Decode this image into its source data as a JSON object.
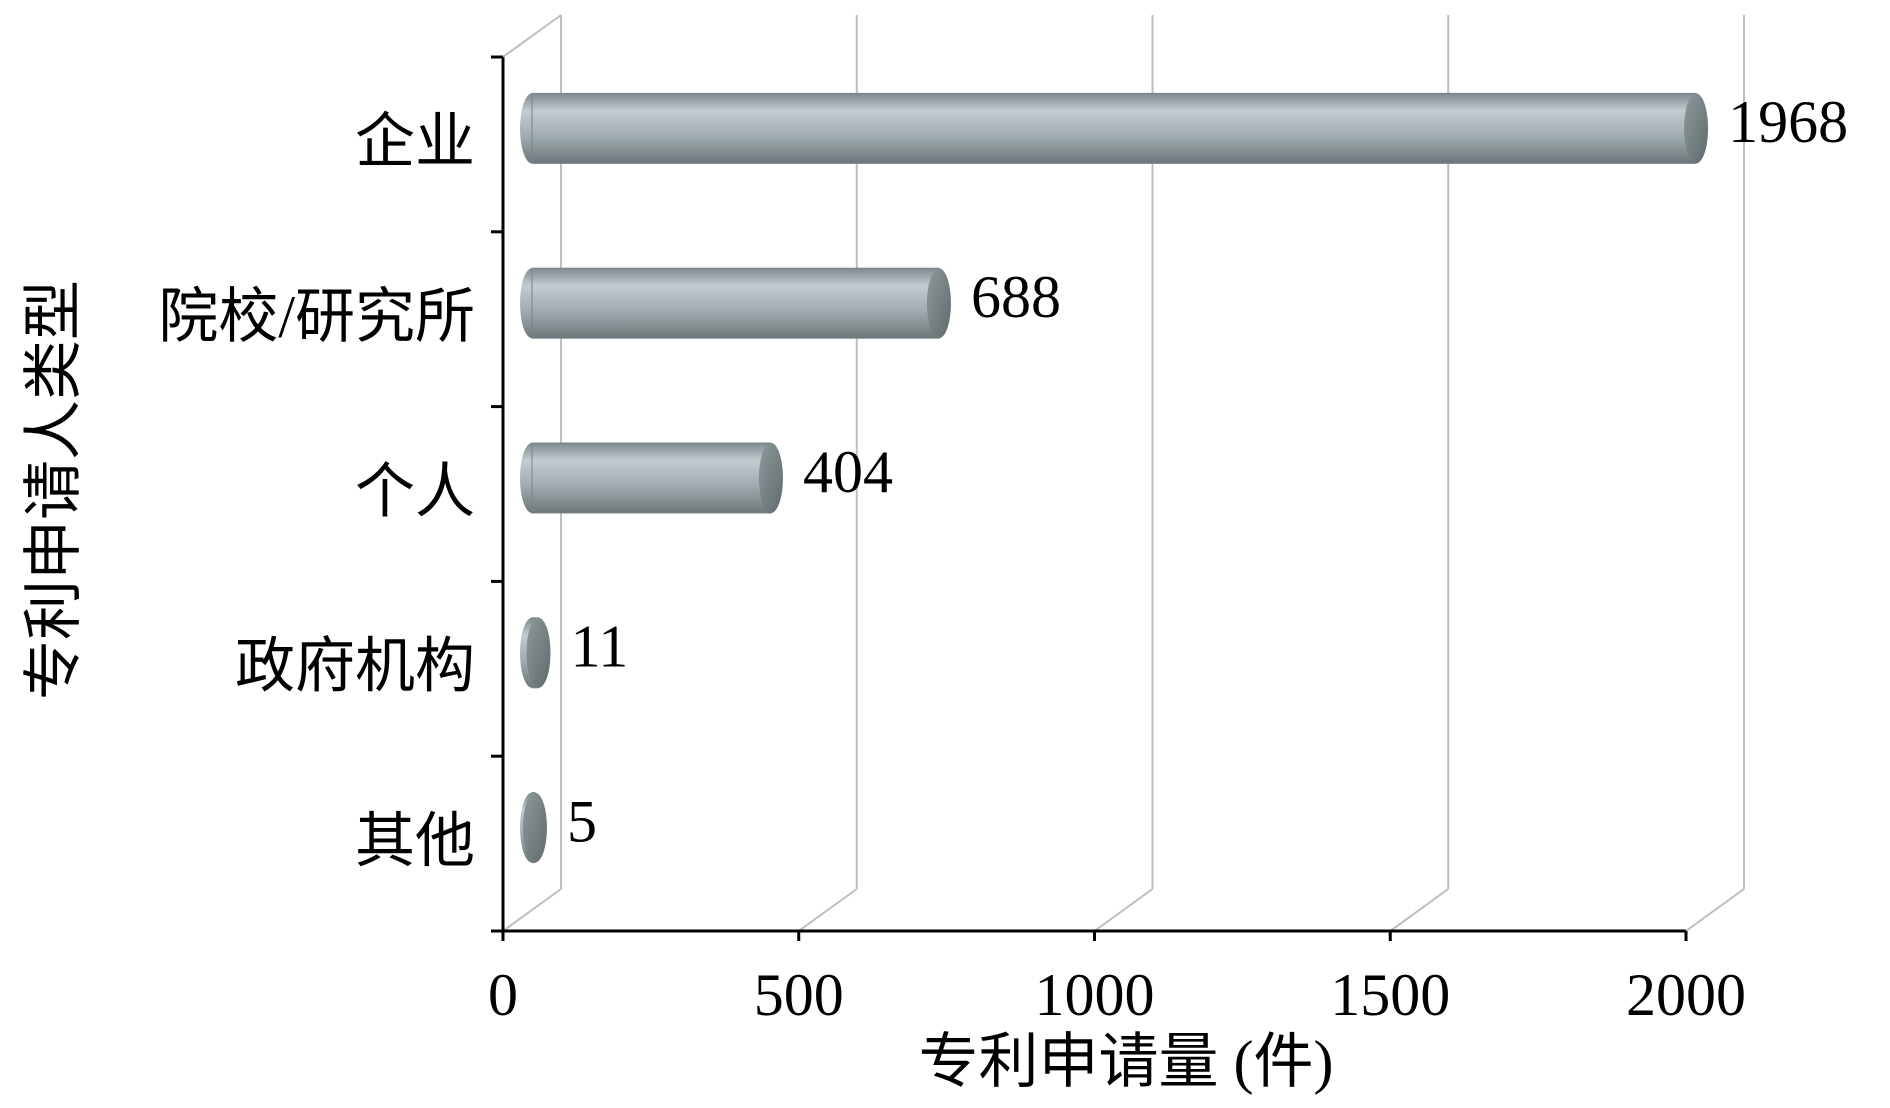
{
  "chart_data": {
    "type": "bar",
    "orientation": "horizontal",
    "xlabel": "专利申请量 (件)",
    "ylabel": "专利申请人类型",
    "categories": [
      "企业",
      "院校/研究所",
      "个人",
      "政府机构",
      "其他"
    ],
    "values": [
      1968,
      688,
      404,
      11,
      5
    ],
    "color": "#a9b4b8",
    "xlim": [
      0,
      2000
    ],
    "xticks": [
      0,
      500,
      1000,
      1500,
      2000
    ],
    "grid": true
  }
}
